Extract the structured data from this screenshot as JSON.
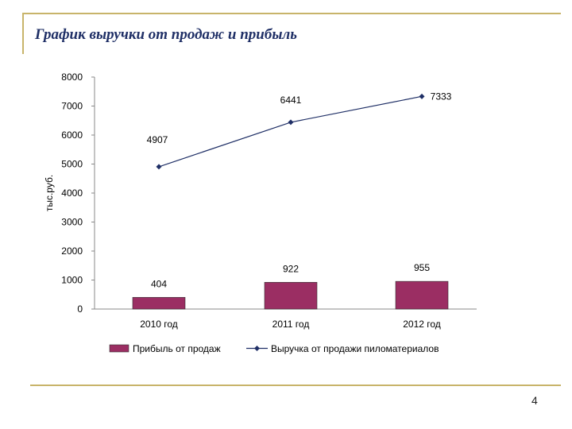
{
  "slide": {
    "title": "График выручки от продаж и прибыль",
    "page_number": "4"
  },
  "colors": {
    "frame": "#c8b46a",
    "title": "#1f2f66",
    "bar": "#9b2e63",
    "line": "#1f2f66"
  },
  "chart_data": {
    "type": "bar+line",
    "categories": [
      "2010 год",
      "2011 год",
      "2012 год"
    ],
    "series": [
      {
        "name": "Прибыль от продаж",
        "type": "bar",
        "values": [
          404,
          922,
          955
        ]
      },
      {
        "name": "Выручка от продажи пиломатериалов",
        "type": "line",
        "values": [
          4907,
          6441,
          7333
        ]
      }
    ],
    "ylabel": "тыс.руб.",
    "ylim": [
      0,
      8000
    ],
    "yticks": [
      0,
      1000,
      2000,
      3000,
      4000,
      5000,
      6000,
      7000,
      8000
    ],
    "grid": false,
    "legend": "bottom"
  }
}
